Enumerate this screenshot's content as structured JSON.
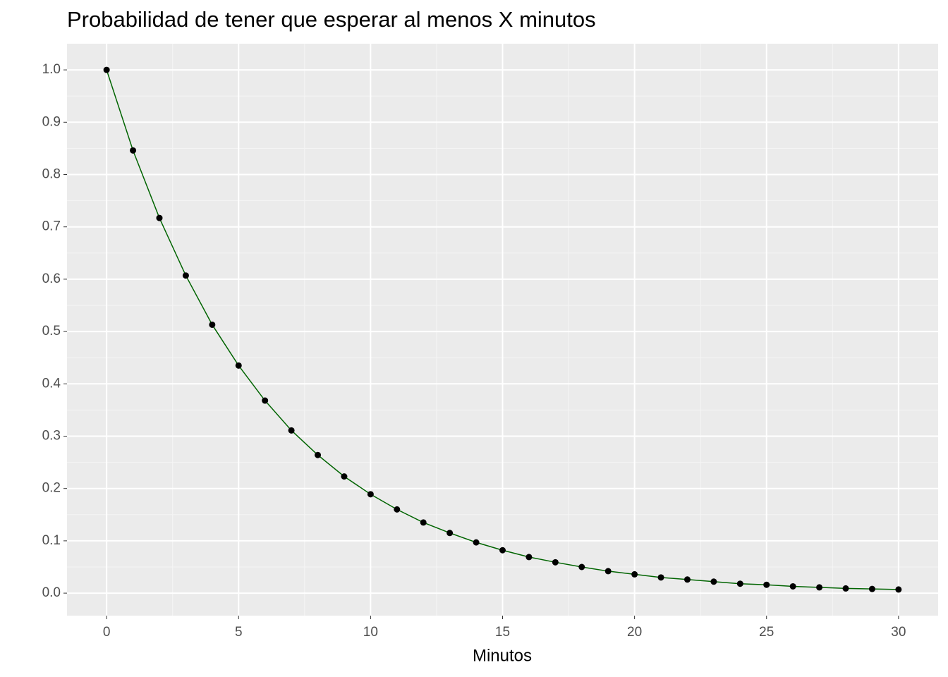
{
  "chart_data": {
    "type": "line",
    "title": "Probabilidad de tener que esperar al menos X minutos",
    "xlabel": "Minutos",
    "x": [
      0,
      1,
      2,
      3,
      4,
      5,
      6,
      7,
      8,
      9,
      10,
      11,
      12,
      13,
      14,
      15,
      16,
      17,
      18,
      19,
      20,
      21,
      22,
      23,
      24,
      25,
      26,
      27,
      28,
      29,
      30
    ],
    "series": [
      {
        "color": "#006400",
        "marker_color": "#000000",
        "values": [
          1.0,
          0.846,
          0.717,
          0.607,
          0.513,
          0.435,
          0.368,
          0.311,
          0.264,
          0.223,
          0.189,
          0.16,
          0.135,
          0.115,
          0.097,
          0.082,
          0.069,
          0.059,
          0.05,
          0.042,
          0.036,
          0.03,
          0.026,
          0.022,
          0.018,
          0.016,
          0.013,
          0.011,
          0.009,
          0.008,
          0.007
        ]
      }
    ],
    "xlim": [
      -1.5,
      31.5
    ],
    "xticks": [
      0,
      5,
      10,
      15,
      20,
      25,
      30
    ],
    "ylim": [
      -0.043,
      1.05
    ],
    "yticks": [
      {
        "value": 0,
        "label": "0.0"
      },
      {
        "value": 0.1,
        "label": "0.1"
      },
      {
        "value": 0.2,
        "label": "0.2"
      },
      {
        "value": 0.3,
        "label": "0.3"
      },
      {
        "value": 0.4,
        "label": "0.4"
      },
      {
        "value": 0.5,
        "label": "0.5"
      },
      {
        "value": 0.6,
        "label": "0.6"
      },
      {
        "value": 0.7,
        "label": "0.7"
      },
      {
        "value": 0.8,
        "label": "0.8"
      },
      {
        "value": 0.9,
        "label": "0.9"
      },
      {
        "value": 1,
        "label": "1.0"
      }
    ],
    "grid": true,
    "minor_grid": true
  }
}
